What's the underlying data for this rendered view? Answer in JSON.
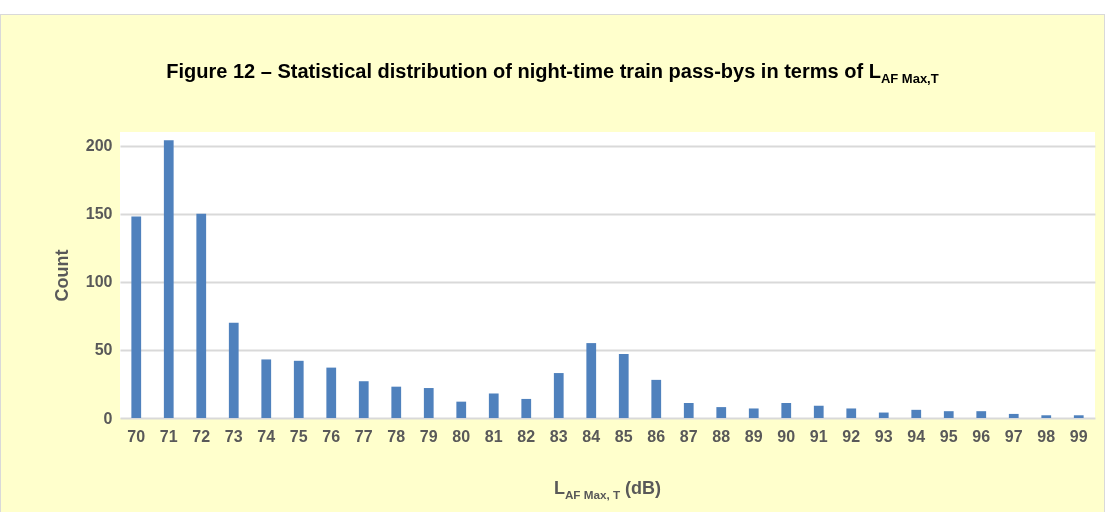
{
  "chart_data": {
    "type": "bar",
    "title": "Figure 12 – Statistical distribution of night-time train pass-bys in terms of L$_{AF Max,T}$",
    "xlabel": "L$_{AF Max, T}$ (dB)",
    "ylabel": "Count",
    "categories": [
      "70",
      "71",
      "72",
      "73",
      "74",
      "75",
      "76",
      "77",
      "78",
      "79",
      "80",
      "81",
      "82",
      "83",
      "84",
      "85",
      "86",
      "87",
      "88",
      "89",
      "90",
      "91",
      "92",
      "93",
      "94",
      "95",
      "96",
      "97",
      "98",
      "99"
    ],
    "values": [
      148,
      204,
      150,
      70,
      43,
      42,
      37,
      27,
      23,
      22,
      12,
      18,
      14,
      33,
      55,
      47,
      28,
      11,
      8,
      7,
      11,
      9,
      7,
      4,
      6,
      5,
      5,
      3,
      2,
      2
    ],
    "color": "#4f81bd",
    "ylim": [
      0,
      210
    ],
    "yticks": [
      0,
      50,
      100,
      150,
      200
    ],
    "grid": "y"
  }
}
